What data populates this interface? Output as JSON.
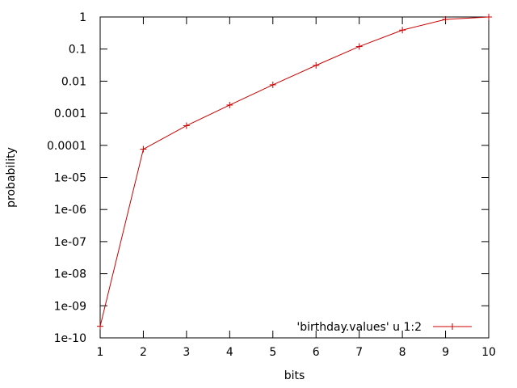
{
  "chart_data": {
    "type": "line",
    "title": "",
    "xlabel": "bits",
    "ylabel": "probability",
    "x_scale": "linear",
    "y_scale": "log",
    "xlim": [
      1,
      10
    ],
    "ylim": [
      1e-10,
      1
    ],
    "x_ticks": [
      "1",
      "2",
      "3",
      "4",
      "5",
      "6",
      "7",
      "8",
      "9",
      "10"
    ],
    "y_ticks": [
      "1e-10",
      "1e-09",
      "1e-08",
      "1e-07",
      "1e-06",
      "1e-05",
      "0.0001",
      "0.001",
      "0.01",
      "0.1",
      "1"
    ],
    "grid": false,
    "legend_position": "bottom-right",
    "series": [
      {
        "name": "'birthday.values' u 1:2",
        "color": "#cc0000",
        "marker": "plus",
        "x": [
          1,
          2,
          3,
          4,
          5,
          6,
          7,
          8,
          9,
          10
        ],
        "y": [
          2.3e-10,
          7.6e-05,
          0.00041,
          0.0018,
          0.0077,
          0.031,
          0.12,
          0.39,
          0.84,
          1.0
        ]
      }
    ]
  }
}
